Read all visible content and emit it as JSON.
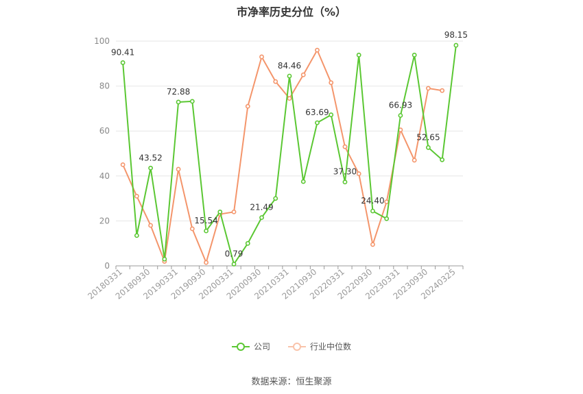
{
  "chart_data": {
    "type": "line",
    "title": "市净率历史分位（%）",
    "ylim": [
      0,
      100
    ],
    "yticks": [
      0,
      20,
      40,
      60,
      80,
      100
    ],
    "grid": true,
    "legend_position": "bottom",
    "x": [
      "20180331",
      "20180630",
      "20180930",
      "20181231",
      "20190331",
      "20190630",
      "20190930",
      "20191231",
      "20200331",
      "20200630",
      "20200930",
      "20201231",
      "20210331",
      "20210630",
      "20210930",
      "20211231",
      "20220331",
      "20220630",
      "20220930",
      "20221231",
      "20230331",
      "20230630",
      "20230930",
      "20231231",
      "20240325"
    ],
    "xtick_labels": [
      "20180331",
      "20180930",
      "20190331",
      "20190930",
      "20200331",
      "20200930",
      "20210331",
      "20210930",
      "20220331",
      "20220930",
      "20230331",
      "20230930",
      "20240325"
    ],
    "series": [
      {
        "name": "公司",
        "color": "#5ac732",
        "values": [
          90.41,
          13.5,
          43.52,
          3,
          72.88,
          73.2,
          15.54,
          24,
          0.79,
          10,
          21.49,
          30,
          84.46,
          37.5,
          63.69,
          67.2,
          37.3,
          93.8,
          24.4,
          21,
          66.93,
          93.8,
          52.65,
          47.2,
          98.15
        ],
        "data_labels": [
          {
            "index": 0,
            "text": "90.41"
          },
          {
            "index": 2,
            "text": "43.52"
          },
          {
            "index": 4,
            "text": "72.88"
          },
          {
            "index": 6,
            "text": "15.54"
          },
          {
            "index": 8,
            "text": "0.79"
          },
          {
            "index": 10,
            "text": "21.49"
          },
          {
            "index": 12,
            "text": "84.46"
          },
          {
            "index": 14,
            "text": "63.69"
          },
          {
            "index": 16,
            "text": "37.30"
          },
          {
            "index": 18,
            "text": "24.40"
          },
          {
            "index": 20,
            "text": "66.93"
          },
          {
            "index": 22,
            "text": "52.65"
          },
          {
            "index": 24,
            "text": "98.15"
          }
        ]
      },
      {
        "name": "行业中位数",
        "color": "#f4956b",
        "values": [
          45,
          31,
          18,
          2,
          43,
          16.5,
          1.5,
          23,
          24,
          71,
          93,
          82,
          74.5,
          85,
          96,
          81.5,
          53,
          41,
          9.5,
          28.5,
          60.5,
          47,
          79,
          78,
          null
        ]
      }
    ]
  },
  "source": "数据来源：恒生聚源"
}
